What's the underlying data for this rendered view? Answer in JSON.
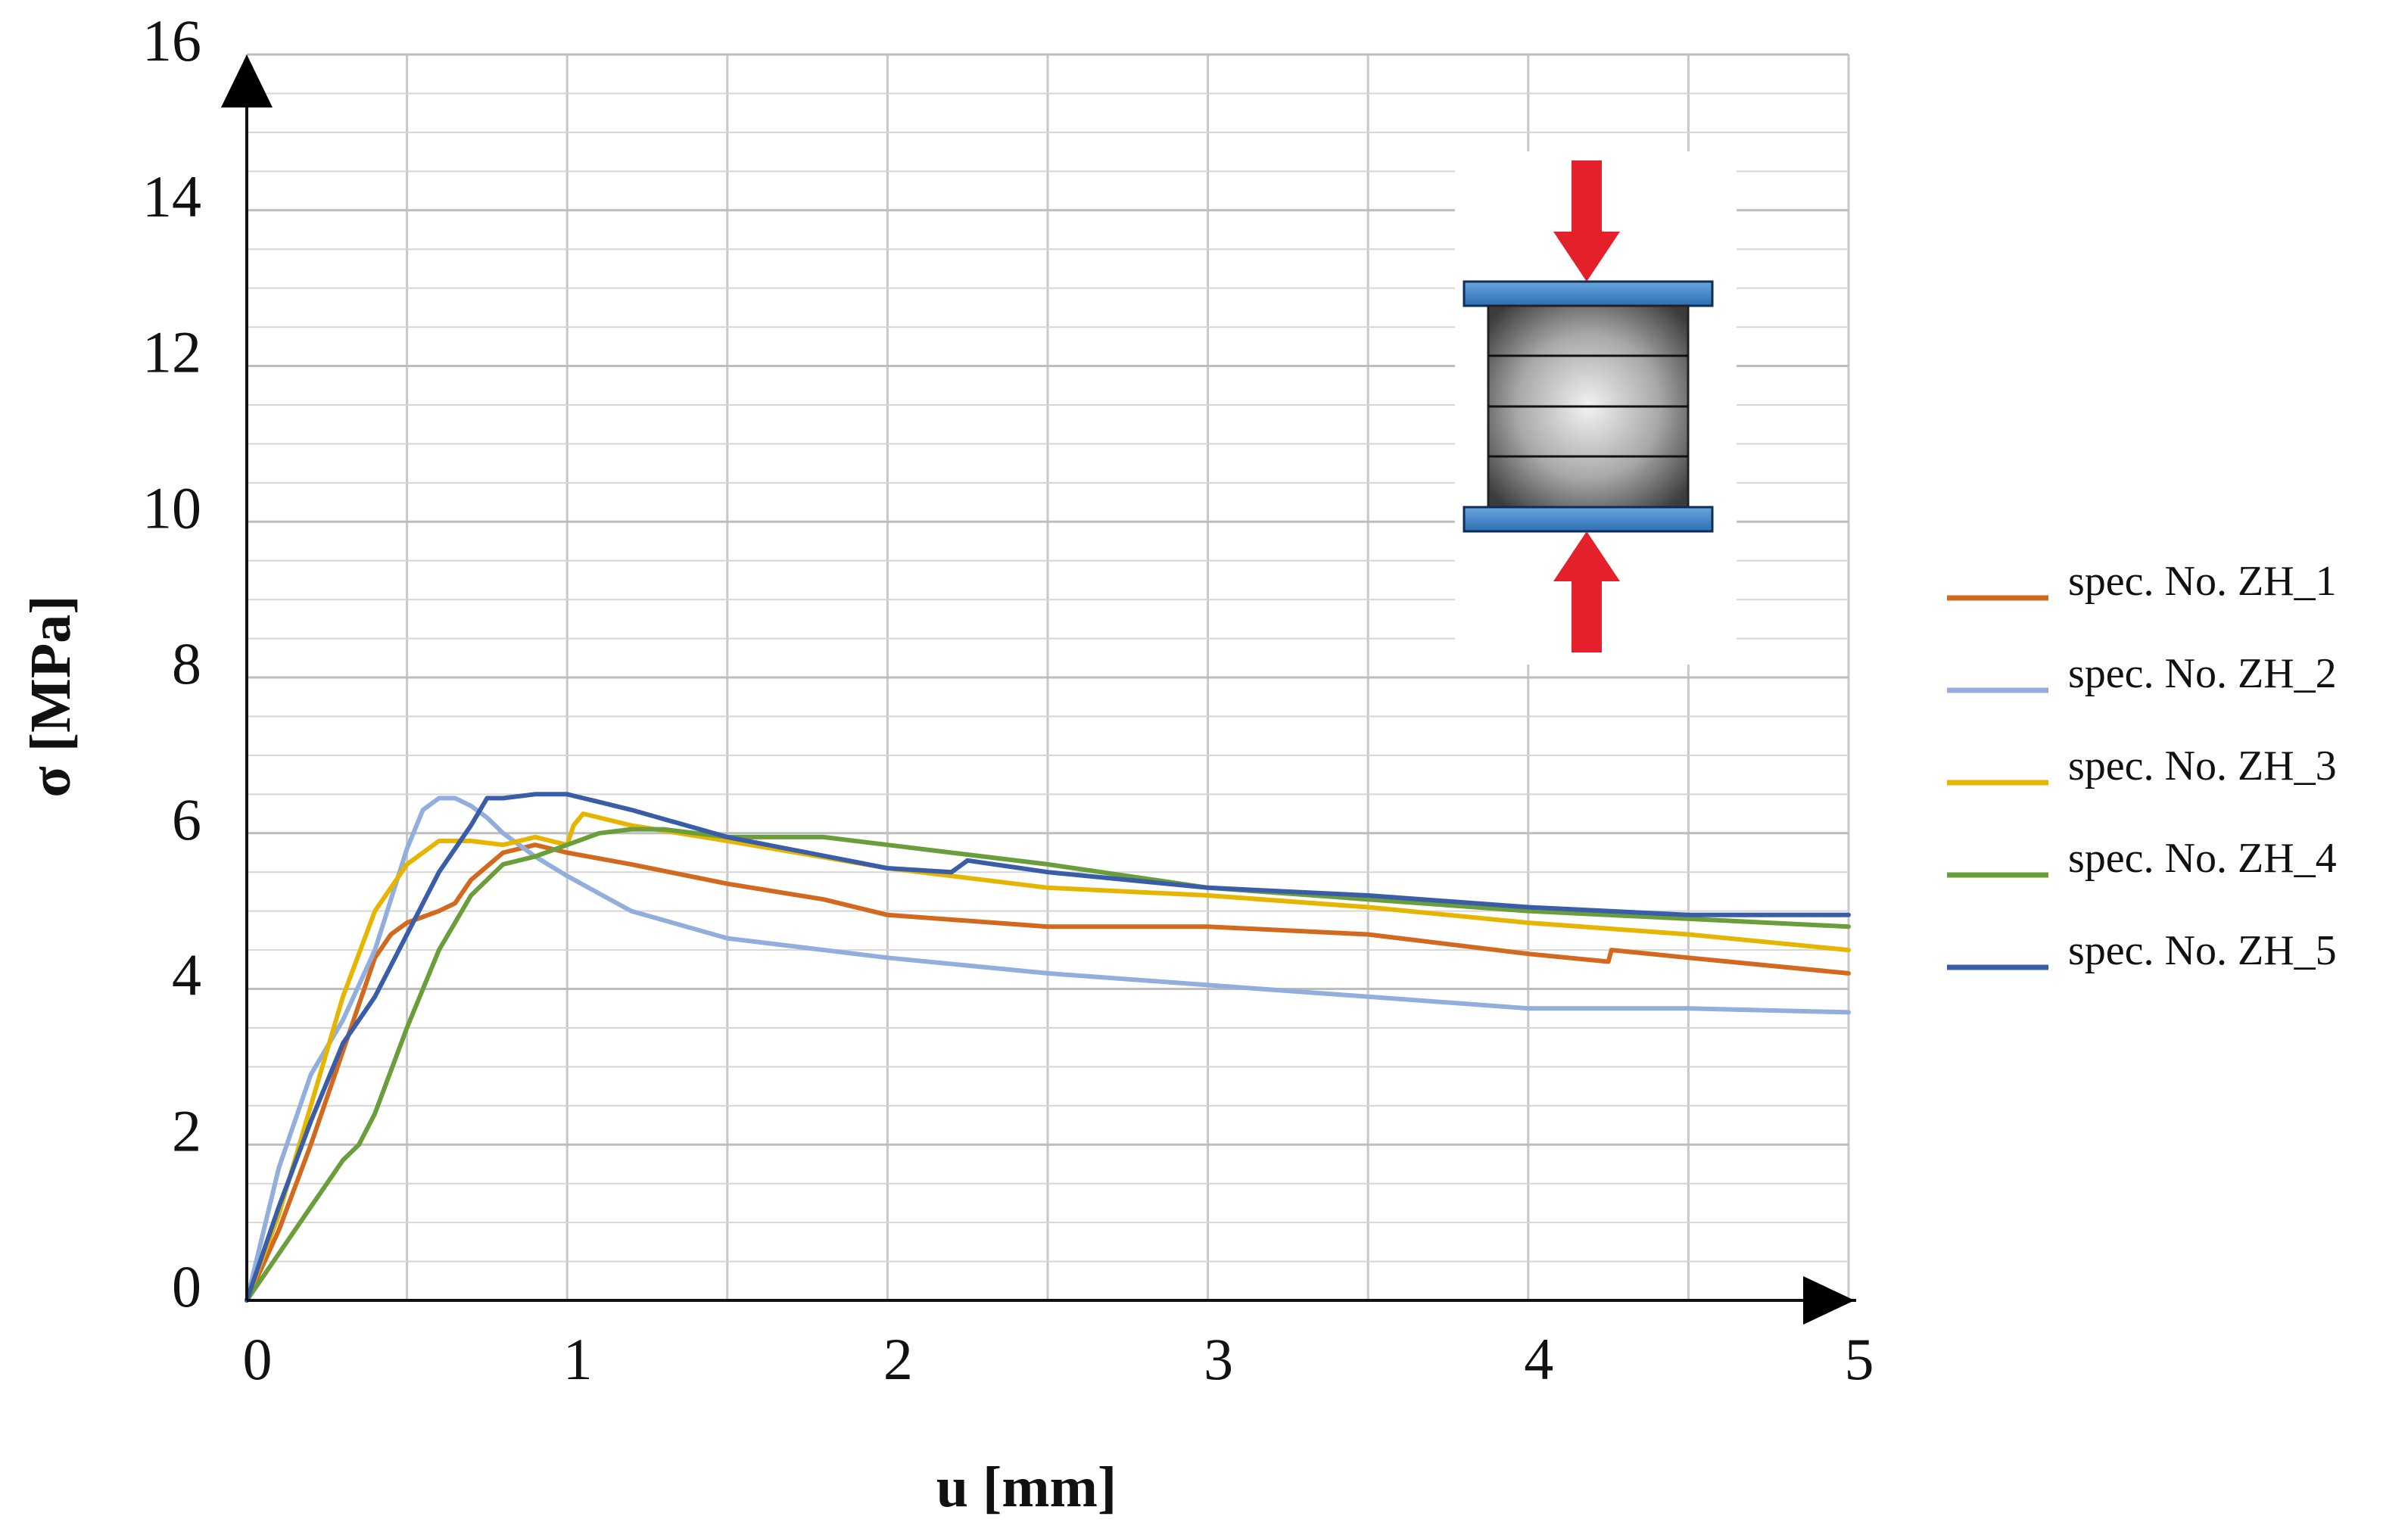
{
  "chart_data": {
    "type": "line",
    "title": "",
    "xlabel": "u [mm]",
    "ylabel": "σ [MPa]",
    "xlim": [
      0,
      5
    ],
    "ylim": [
      0,
      16
    ],
    "x_ticks": [
      "0",
      "1",
      "2",
      "3",
      "4",
      "5"
    ],
    "y_ticks": [
      "0",
      "2",
      "4",
      "6",
      "8",
      "10",
      "12",
      "14",
      "16"
    ],
    "grid": true,
    "legend_position": "right",
    "inset": "specimen-under-compression-icon",
    "series": [
      {
        "name": "spec. No. ZH_1",
        "color": "#D2691E",
        "x": [
          0,
          0.1,
          0.2,
          0.3,
          0.4,
          0.45,
          0.5,
          0.6,
          0.65,
          0.7,
          0.8,
          0.9,
          1.0,
          1.2,
          1.5,
          1.8,
          2.0,
          2.5,
          3.0,
          3.5,
          4.0,
          4.25,
          4.26,
          4.5,
          5.0
        ],
        "y": [
          0,
          0.9,
          2.0,
          3.2,
          4.4,
          4.7,
          4.85,
          5.0,
          5.1,
          5.4,
          5.75,
          5.85,
          5.75,
          5.6,
          5.35,
          5.15,
          4.95,
          4.8,
          4.8,
          4.7,
          4.45,
          4.35,
          4.5,
          4.4,
          4.2
        ]
      },
      {
        "name": "spec. No. ZH_2",
        "color": "#92AEDC",
        "x": [
          0,
          0.1,
          0.2,
          0.3,
          0.4,
          0.5,
          0.55,
          0.6,
          0.65,
          0.7,
          0.75,
          0.8,
          0.9,
          1.0,
          1.2,
          1.5,
          2.0,
          2.5,
          3.0,
          3.5,
          4.0,
          4.5,
          5.0
        ],
        "y": [
          0,
          1.7,
          2.9,
          3.6,
          4.5,
          5.8,
          6.3,
          6.45,
          6.45,
          6.35,
          6.2,
          6.0,
          5.7,
          5.45,
          5.0,
          4.65,
          4.4,
          4.2,
          4.05,
          3.9,
          3.75,
          3.75,
          3.7
        ]
      },
      {
        "name": "spec. No. ZH_3",
        "color": "#E5B500",
        "x": [
          0,
          0.1,
          0.2,
          0.3,
          0.4,
          0.5,
          0.6,
          0.7,
          0.8,
          0.9,
          1.0,
          1.02,
          1.05,
          1.2,
          1.5,
          2.0,
          2.5,
          3.0,
          3.5,
          4.0,
          4.5,
          5.0
        ],
        "y": [
          0,
          1.1,
          2.5,
          3.9,
          5.0,
          5.6,
          5.9,
          5.9,
          5.85,
          5.95,
          5.85,
          6.1,
          6.25,
          6.1,
          5.9,
          5.55,
          5.3,
          5.2,
          5.05,
          4.85,
          4.7,
          4.5
        ]
      },
      {
        "name": "spec. No. ZH_4",
        "color": "#6A9E3A",
        "x": [
          0,
          0.1,
          0.2,
          0.3,
          0.35,
          0.4,
          0.5,
          0.6,
          0.7,
          0.8,
          0.9,
          1.0,
          1.1,
          1.2,
          1.3,
          1.5,
          1.8,
          2.0,
          2.5,
          3.0,
          3.5,
          4.0,
          4.5,
          5.0
        ],
        "y": [
          0,
          0.6,
          1.2,
          1.8,
          2.0,
          2.4,
          3.5,
          4.5,
          5.2,
          5.6,
          5.7,
          5.85,
          6.0,
          6.05,
          6.05,
          5.95,
          5.95,
          5.85,
          5.6,
          5.3,
          5.15,
          5.0,
          4.9,
          4.8
        ]
      },
      {
        "name": "spec. No. ZH_5",
        "color": "#3A5DA8",
        "x": [
          0,
          0.1,
          0.2,
          0.3,
          0.4,
          0.5,
          0.6,
          0.7,
          0.75,
          0.8,
          0.9,
          1.0,
          1.1,
          1.2,
          1.5,
          2.0,
          2.2,
          2.25,
          2.5,
          3.0,
          3.5,
          4.0,
          4.5,
          5.0
        ],
        "y": [
          0,
          1.2,
          2.3,
          3.3,
          3.9,
          4.7,
          5.5,
          6.1,
          6.45,
          6.45,
          6.5,
          6.5,
          6.4,
          6.3,
          5.95,
          5.55,
          5.5,
          5.65,
          5.5,
          5.3,
          5.2,
          5.05,
          4.95,
          4.95
        ]
      }
    ]
  }
}
